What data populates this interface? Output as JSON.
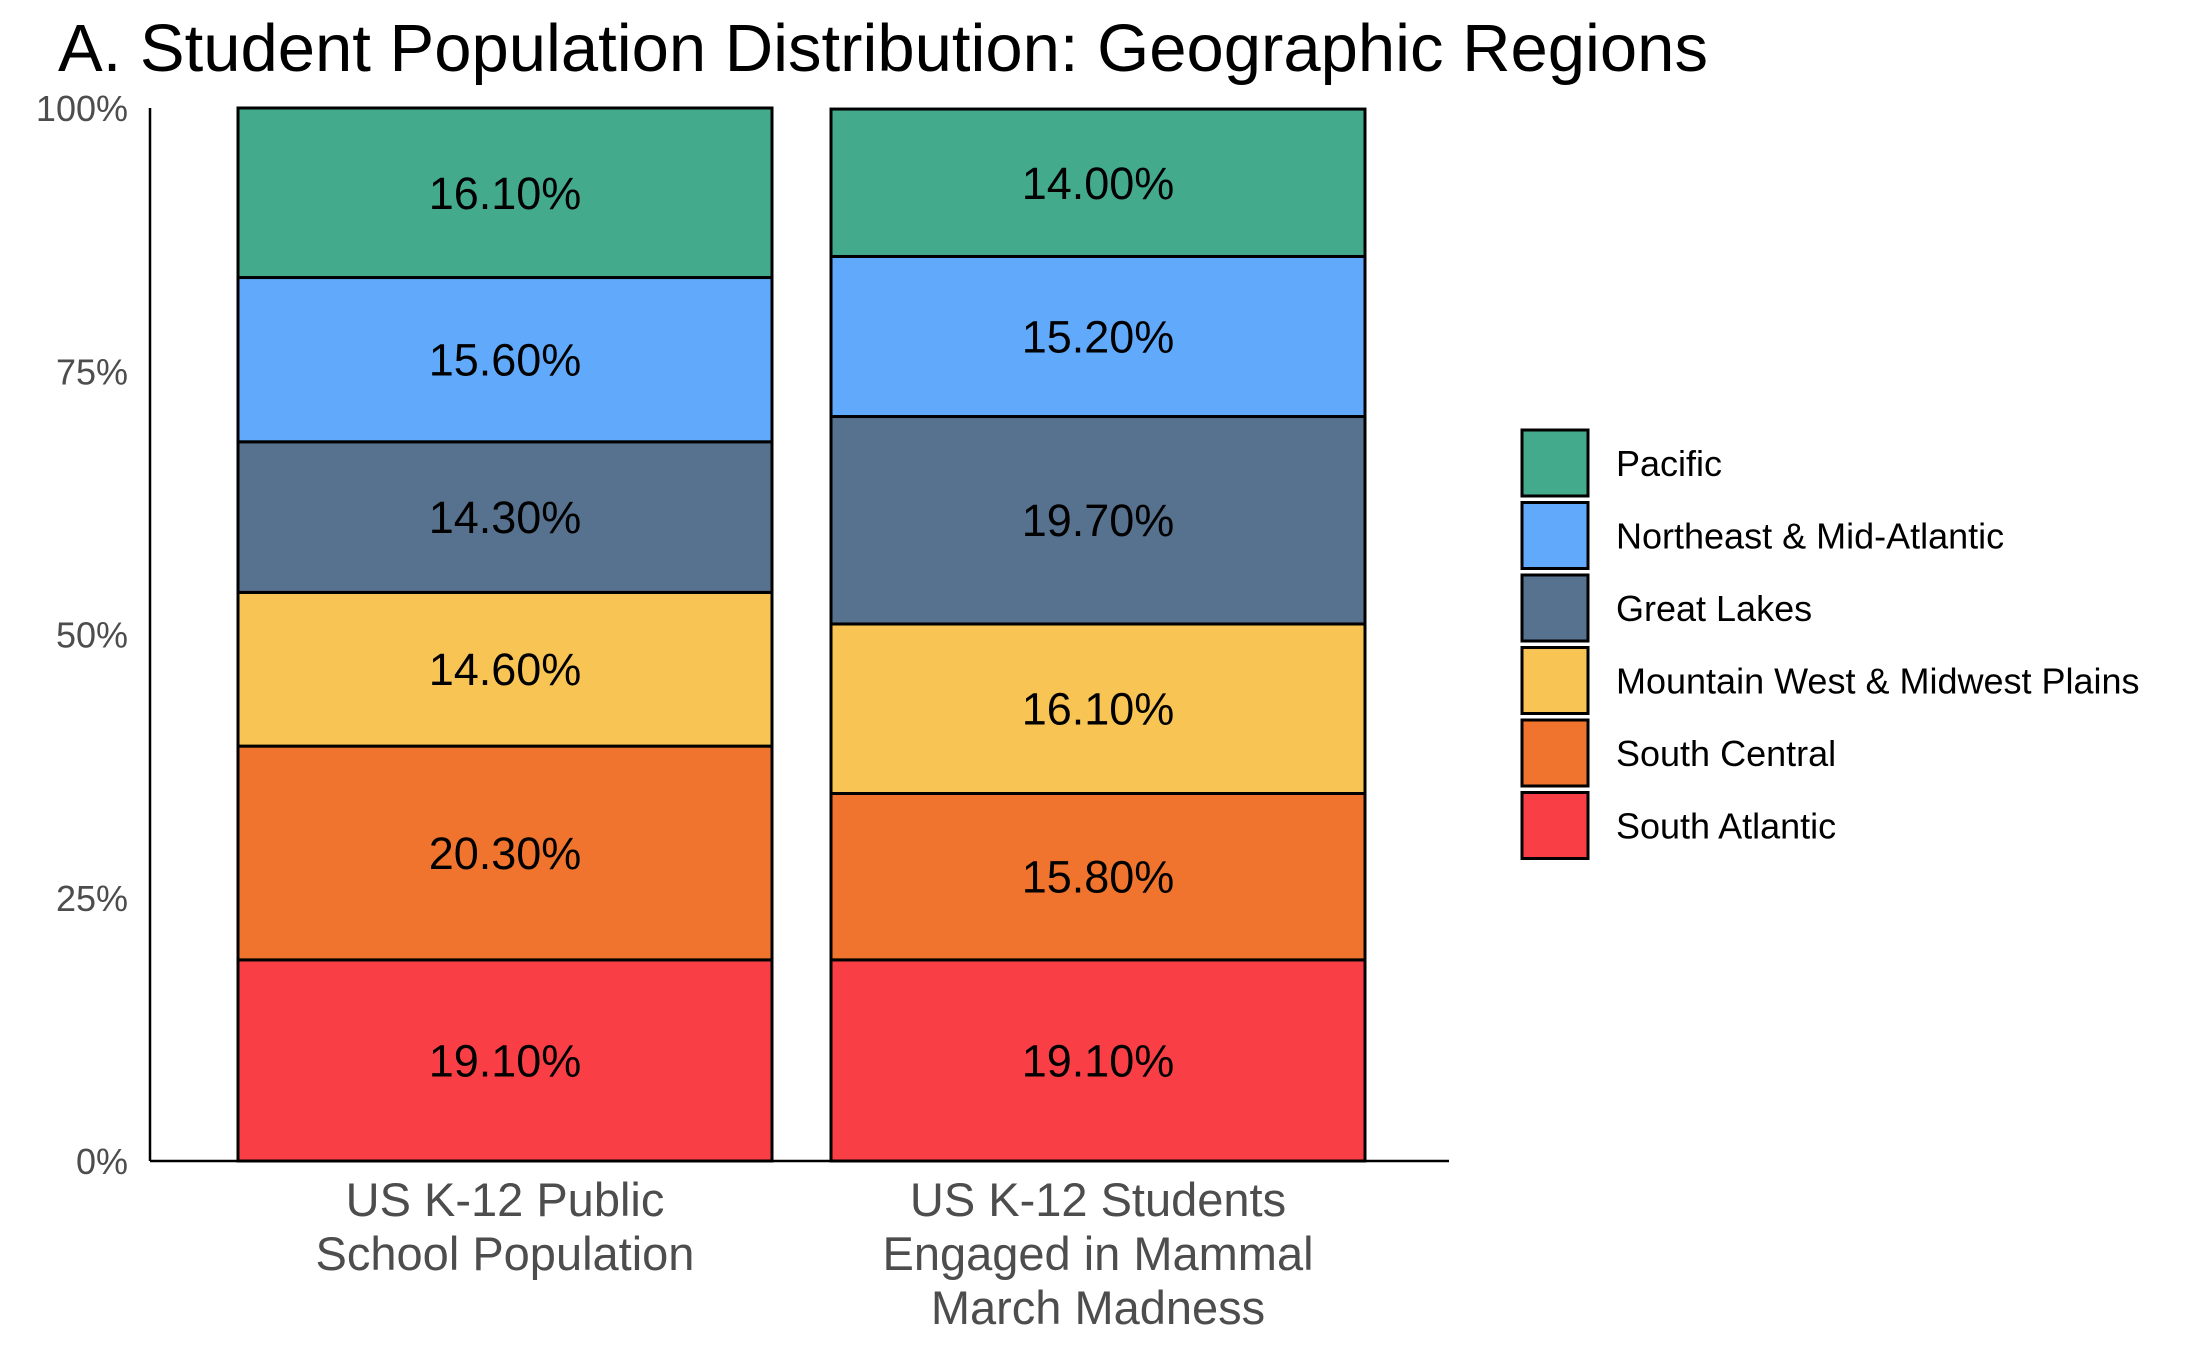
{
  "chart_data": {
    "type": "bar",
    "stacked": true,
    "title": "A. Student Population Distribution: Geographic Regions",
    "xlabel": "",
    "ylabel": "",
    "ylim": [
      0,
      100
    ],
    "y_ticks": [
      "0%",
      "25%",
      "50%",
      "75%",
      "100%"
    ],
    "grid": false,
    "legend_position": "right",
    "categories": [
      "US K-12 Public School Population",
      "US K-12 Students Engaged in Mammal March Madness"
    ],
    "category_label_lines": [
      [
        "US K-12 Public",
        "School Population"
      ],
      [
        "US K-12 Students",
        "Engaged in Mammal",
        "March Madness"
      ]
    ],
    "series": [
      {
        "name": "South Atlantic",
        "color": "#f93f45",
        "values": [
          19.1,
          19.1
        ],
        "labels": [
          "19.10%",
          "19.10%"
        ]
      },
      {
        "name": "South Central",
        "color": "#f0742e",
        "values": [
          20.3,
          15.8
        ],
        "labels": [
          "20.30%",
          "15.80%"
        ]
      },
      {
        "name": "Mountain West & Midwest Plains",
        "color": "#f8c453",
        "values": [
          14.6,
          16.1
        ],
        "labels": [
          "14.60%",
          "16.10%"
        ]
      },
      {
        "name": "Great Lakes",
        "color": "#56728f",
        "values": [
          14.3,
          19.7
        ],
        "labels": [
          "14.30%",
          "19.70%"
        ]
      },
      {
        "name": "Northeast & Mid-Atlantic",
        "color": "#60a9fb",
        "values": [
          15.6,
          15.2
        ],
        "labels": [
          "15.60%",
          "15.20%"
        ]
      },
      {
        "name": "Pacific",
        "color": "#43aa8b",
        "values": [
          16.1,
          14.0
        ],
        "labels": [
          "16.10%",
          "14.00%"
        ]
      }
    ],
    "legend_order": [
      "Pacific",
      "Northeast & Mid-Atlantic",
      "Great Lakes",
      "Mountain West & Midwest Plains",
      "South Central",
      "South Atlantic"
    ]
  }
}
